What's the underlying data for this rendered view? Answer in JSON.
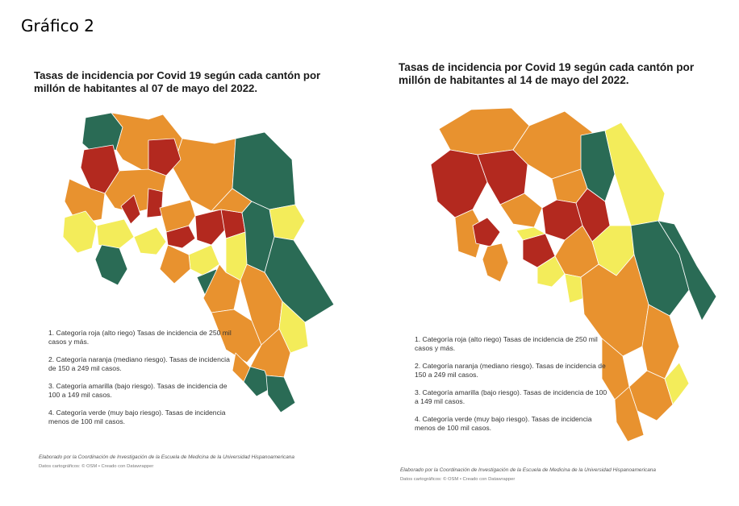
{
  "page": {
    "heading": "Gráfico 2"
  },
  "colors": {
    "red": "#b3291f",
    "orange": "#e8922f",
    "yellow": "#f3ec5a",
    "green": "#2a6b55"
  },
  "maps": [
    {
      "title": "Tasas de incidencia por Covid 19 según cada cantón por millón de habitantes al 07 de mayo del 2022.",
      "legend": [
        "1. Categoría roja (alto riego) Tasas de incidencia de 250 mil casos y más.",
        "2. Categoría naranja (mediano riesgo). Tasas de incidencia de 150 a 249 mil casos.",
        "3. Categoría amarilla (bajo riesgo). Tasas de incidencia de 100 a 149 mil casos.",
        "4. Categoría verde (muy bajo riesgo). Tasas de incidencia menos de 100 mil casos."
      ],
      "credit": "Elaborado por la Coordinación de Investigación de la Escuela de Medicina de la Universidad Hispanoamericana",
      "source": "Datos cartográficos: © OSM • Creado con Datawrapper"
    },
    {
      "title": "Tasas de incidencia por Covid 19 según cada cantón por millón de habitantes al 14 de mayo del 2022.",
      "legend": [
        "1. Categoría roja (alto riego) Tasas de incidencia de 250 mil casos y más.",
        "2. Categoría naranja (mediano riesgo). Tasas de incidencia de 150 a 249 mil casos.",
        "3. Categoría amarilla (bajo riesgo). Tasas de incidencia de 100 a 149 mil casos.",
        "4. Categoría verde (muy bajo riesgo). Tasas de incidencia menos de 100 mil casos."
      ],
      "credit": "Elaborado por la Coordinación de Investigación de la Escuela de Medicina de la Universidad Hispanoamericana",
      "source": "Datos cartográficos: © OSM • Creado con Datawrapper"
    }
  ]
}
